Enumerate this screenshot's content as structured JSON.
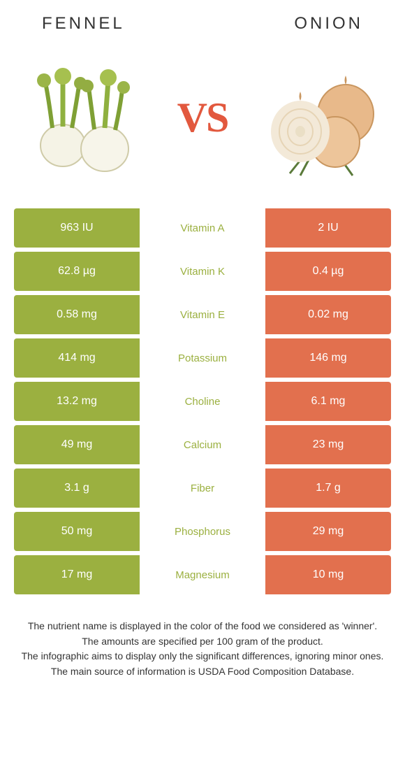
{
  "colors": {
    "left": "#9bb040",
    "right": "#e2704e",
    "vs": "#e2583e",
    "mid_left_text": "#9bb040",
    "mid_right_text": "#e2704e",
    "title": "#333333",
    "footnote": "#333333",
    "background": "#ffffff"
  },
  "left_food": {
    "title": "FENNEL"
  },
  "right_food": {
    "title": "ONION"
  },
  "vs_label": "VS",
  "rows": [
    {
      "left": "963 IU",
      "mid": "Vitamin A",
      "right": "2 IU",
      "winner": "left"
    },
    {
      "left": "62.8 µg",
      "mid": "Vitamin K",
      "right": "0.4 µg",
      "winner": "left"
    },
    {
      "left": "0.58 mg",
      "mid": "Vitamin E",
      "right": "0.02 mg",
      "winner": "left"
    },
    {
      "left": "414 mg",
      "mid": "Potassium",
      "right": "146 mg",
      "winner": "left"
    },
    {
      "left": "13.2 mg",
      "mid": "Choline",
      "right": "6.1 mg",
      "winner": "left"
    },
    {
      "left": "49 mg",
      "mid": "Calcium",
      "right": "23 mg",
      "winner": "left"
    },
    {
      "left": "3.1 g",
      "mid": "Fiber",
      "right": "1.7 g",
      "winner": "left"
    },
    {
      "left": "50 mg",
      "mid": "Phosphorus",
      "right": "29 mg",
      "winner": "left"
    },
    {
      "left": "17 mg",
      "mid": "Magnesium",
      "right": "10 mg",
      "winner": "left"
    }
  ],
  "footnotes": [
    "The nutrient name is displayed in the color of the food we considered as 'winner'.",
    "The amounts are specified per 100 gram of the product.",
    "The infographic aims to display only the significant differences, ignoring minor ones.",
    "The main source of information is USDA Food Composition Database."
  ]
}
